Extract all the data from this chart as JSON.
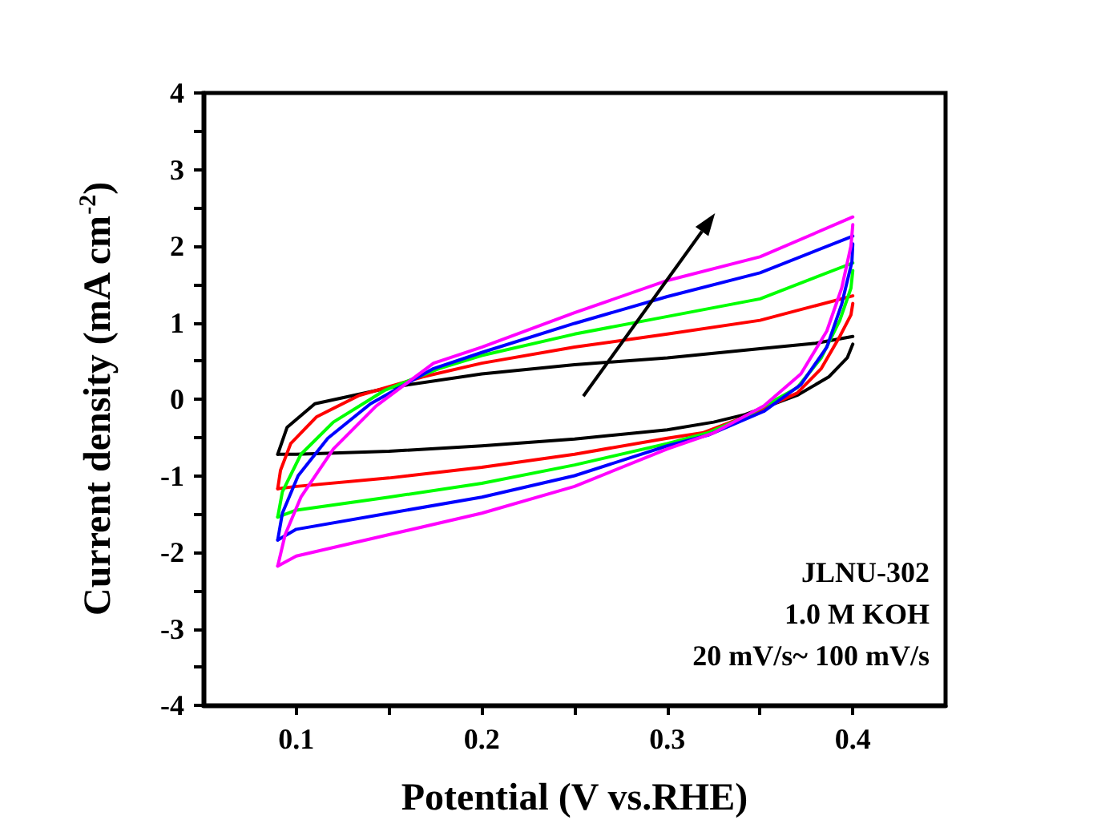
{
  "chart_data": {
    "type": "line",
    "xlabel": "Potential (V vs.RHE)",
    "ylabel": "Current density (mA cm$^{-2}$)",
    "annotations": [
      "JLNU-302",
      "1.0 M KOH",
      "20 mV/s~ 100 mV/s"
    ],
    "xlim": [
      0.05,
      0.45
    ],
    "xticks": [
      0.1,
      {
        "value": 0.15,
        "label": null
      },
      0.2,
      {
        "value": 0.25,
        "label": null
      },
      0.3,
      {
        "value": 0.35,
        "label": null
      },
      0.4
    ],
    "ylim": [
      -4,
      4
    ],
    "yticks": [
      -4,
      {
        "value": -3.5,
        "label": null
      },
      -3,
      {
        "value": -2.5,
        "label": null
      },
      -2,
      {
        "value": -1.5,
        "label": null
      },
      -1,
      {
        "value": -0.5,
        "label": null
      },
      0,
      {
        "value": 0.5,
        "label": null
      },
      1,
      {
        "value": 1.5,
        "label": null
      },
      2,
      {
        "value": 2.5,
        "label": null
      },
      3,
      {
        "value": 3.5,
        "label": null
      },
      4
    ],
    "grid": false,
    "marker": "none",
    "line_style": "solid",
    "series": [
      {
        "color": "#000000",
        "x": [
          0.09,
          0.095,
          0.11,
          0.15,
          0.2,
          0.25,
          0.3,
          0.35,
          0.38,
          0.4
        ],
        "values": [
          -0.72,
          -0.37,
          -0.06,
          0.15,
          0.33,
          0.45,
          0.54,
          0.66,
          0.73,
          0.82
        ]
      },
      {
        "color": "#000000",
        "x": [
          0.09,
          0.1,
          0.15,
          0.2,
          0.25,
          0.3,
          0.325,
          0.342,
          0.37,
          0.387,
          0.397,
          0.4
        ],
        "values": [
          -0.72,
          -0.72,
          -0.68,
          -0.61,
          -0.52,
          -0.4,
          -0.3,
          -0.2,
          0.05,
          0.29,
          0.54,
          0.72
        ]
      },
      {
        "color": "#ff0000",
        "x": [
          0.09,
          0.0915,
          0.097,
          0.111,
          0.134,
          0.168,
          0.2,
          0.25,
          0.3,
          0.35,
          0.4
        ],
        "values": [
          -1.17,
          -0.93,
          -0.58,
          -0.23,
          0.05,
          0.29,
          0.47,
          0.68,
          0.85,
          1.03,
          1.35
        ]
      },
      {
        "color": "#ff0000",
        "x": [
          0.09,
          0.1,
          0.15,
          0.2,
          0.25,
          0.3,
          0.319,
          0.342,
          0.37,
          0.383,
          0.393,
          0.399,
          0.4
        ],
        "values": [
          -1.17,
          -1.14,
          -1.03,
          -0.89,
          -0.72,
          -0.51,
          -0.44,
          -0.23,
          0.08,
          0.4,
          0.82,
          1.1,
          1.25
        ]
      },
      {
        "color": "#00ff00",
        "x": [
          0.09,
          0.0925,
          0.1025,
          0.12,
          0.148,
          0.177,
          0.2,
          0.25,
          0.3,
          0.35,
          0.4
        ],
        "values": [
          -1.54,
          -1.21,
          -0.72,
          -0.3,
          0.12,
          0.4,
          0.57,
          0.85,
          1.08,
          1.31,
          1.78
        ]
      },
      {
        "color": "#00ff00",
        "x": [
          0.09,
          0.1,
          0.15,
          0.2,
          0.25,
          0.3,
          0.322,
          0.342,
          0.37,
          0.383,
          0.393,
          0.399,
          0.4
        ],
        "values": [
          -1.54,
          -1.45,
          -1.28,
          -1.1,
          -0.86,
          -0.58,
          -0.44,
          -0.23,
          0.15,
          0.54,
          1.03,
          1.45,
          1.68
        ]
      },
      {
        "color": "#0000ff",
        "x": [
          0.09,
          0.0925,
          0.101,
          0.117,
          0.14,
          0.174,
          0.2,
          0.25,
          0.3,
          0.35,
          0.4
        ],
        "values": [
          -1.84,
          -1.49,
          -1.0,
          -0.51,
          -0.06,
          0.4,
          0.61,
          0.99,
          1.34,
          1.65,
          2.13
        ]
      },
      {
        "color": "#0000ff",
        "x": [
          0.09,
          0.1,
          0.15,
          0.2,
          0.25,
          0.3,
          0.322,
          0.352,
          0.372,
          0.386,
          0.394,
          0.3995,
          0.4
        ],
        "values": [
          -1.84,
          -1.7,
          -1.49,
          -1.28,
          -1.0,
          -0.61,
          -0.47,
          -0.16,
          0.19,
          0.68,
          1.24,
          1.79,
          2.03
        ]
      },
      {
        "color": "#ff00ff",
        "x": [
          0.09,
          0.094,
          0.1025,
          0.12,
          0.143,
          0.174,
          0.2,
          0.25,
          0.3,
          0.35,
          0.4
        ],
        "values": [
          -2.18,
          -1.77,
          -1.28,
          -0.65,
          -0.09,
          0.47,
          0.68,
          1.13,
          1.55,
          1.86,
          2.38
        ]
      },
      {
        "color": "#ff00ff",
        "x": [
          0.09,
          0.1,
          0.15,
          0.2,
          0.25,
          0.3,
          0.325,
          0.352,
          0.372,
          0.386,
          0.394,
          0.399,
          0.4
        ],
        "values": [
          -2.18,
          -2.05,
          -1.77,
          -1.49,
          -1.14,
          -0.65,
          -0.44,
          -0.09,
          0.33,
          0.89,
          1.45,
          2.0,
          2.28
        ]
      }
    ]
  }
}
